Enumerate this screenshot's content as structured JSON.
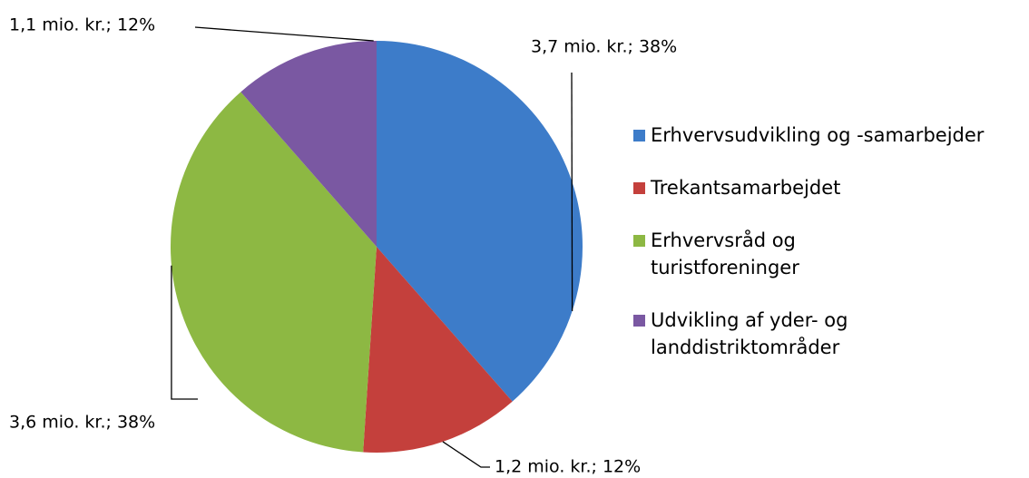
{
  "chart_data": {
    "type": "pie",
    "categories": [
      "Erhvervsudvikling og -samarbejder",
      "Trekantsamarbejdet",
      "Erhvervsråd og turistforeninger",
      "Udvikling af yder- og landdistriktområder"
    ],
    "values": [
      3.7,
      1.2,
      3.6,
      1.1
    ],
    "value_labels": [
      "3,7 mio. kr.; 38%",
      "1,2 mio. kr.; 12%",
      "3,6 mio. kr.; 38%",
      "1,1 mio. kr.; 12%"
    ],
    "colors": [
      "#3d7cc9",
      "#c4403c",
      "#8db843",
      "#7a58a2"
    ],
    "legend": "right"
  }
}
